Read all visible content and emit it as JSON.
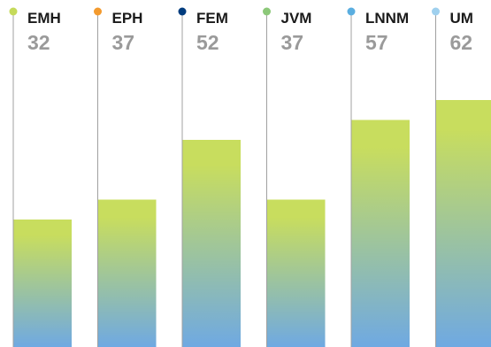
{
  "chart_data": {
    "type": "bar",
    "categories": [
      "EMH",
      "EPH",
      "FEM",
      "JVM",
      "LNNM",
      "UM"
    ],
    "values": [
      32,
      37,
      52,
      37,
      57,
      62
    ],
    "marker_colors": [
      "#c5da5a",
      "#f39a2e",
      "#003c7e",
      "#8cc879",
      "#5aaee0",
      "#9fd0ee"
    ],
    "bar_gradient": {
      "top": "#c8dd5e",
      "bottom": "#6fa9e2"
    },
    "title": "",
    "xlabel": "",
    "ylabel": "",
    "ylim": [
      0,
      70
    ],
    "grid": false,
    "legend": "none"
  }
}
